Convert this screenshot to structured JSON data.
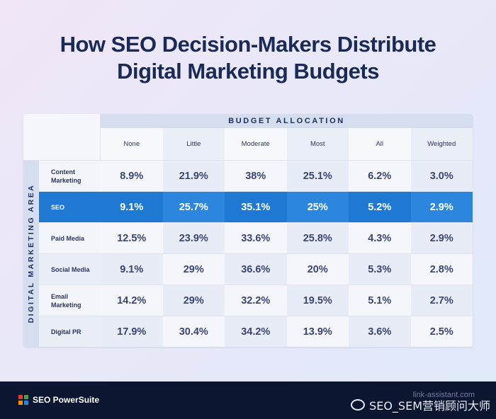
{
  "title_line1": "How SEO Decision-Makers Distribute",
  "title_line2": "Digital Marketing Budgets",
  "chart_data": {
    "type": "table",
    "column_group_label": "BUDGET ALLOCATION",
    "row_group_label": "DIGITAL MARKETING AREA",
    "columns": [
      "None",
      "Little",
      "Moderate",
      "Most",
      "All",
      "Weighted"
    ],
    "rows": [
      {
        "label": "Content Marketing",
        "values": [
          "8.9%",
          "21.9%",
          "38%",
          "25.1%",
          "6.2%",
          "3.0%"
        ],
        "highlight": false
      },
      {
        "label": "SEO",
        "values": [
          "9.1%",
          "25.7%",
          "35.1%",
          "25%",
          "5.2%",
          "2.9%"
        ],
        "highlight": true
      },
      {
        "label": "Paid Media",
        "values": [
          "12.5%",
          "23.9%",
          "33.6%",
          "25.8%",
          "4.3%",
          "2.9%"
        ],
        "highlight": false
      },
      {
        "label": "Social Media",
        "values": [
          "9.1%",
          "29%",
          "36.6%",
          "20%",
          "5.3%",
          "2.8%"
        ],
        "highlight": false
      },
      {
        "label": "Email Marketing",
        "values": [
          "14.2%",
          "29%",
          "32.2%",
          "19.5%",
          "5.1%",
          "2.7%"
        ],
        "highlight": false
      },
      {
        "label": "Digital PR",
        "values": [
          "17.9%",
          "30.4%",
          "34.2%",
          "13.9%",
          "3.6%",
          "2.5%"
        ],
        "highlight": false
      }
    ]
  },
  "footer": {
    "brand": "SEO PowerSuite",
    "site": "link-assistant.com",
    "watermark": "SEO_SEM营销顾问大师"
  },
  "colors": {
    "highlight_row": "#1f78d1",
    "title": "#1a2a57",
    "footer_bg": "#0c1631"
  }
}
